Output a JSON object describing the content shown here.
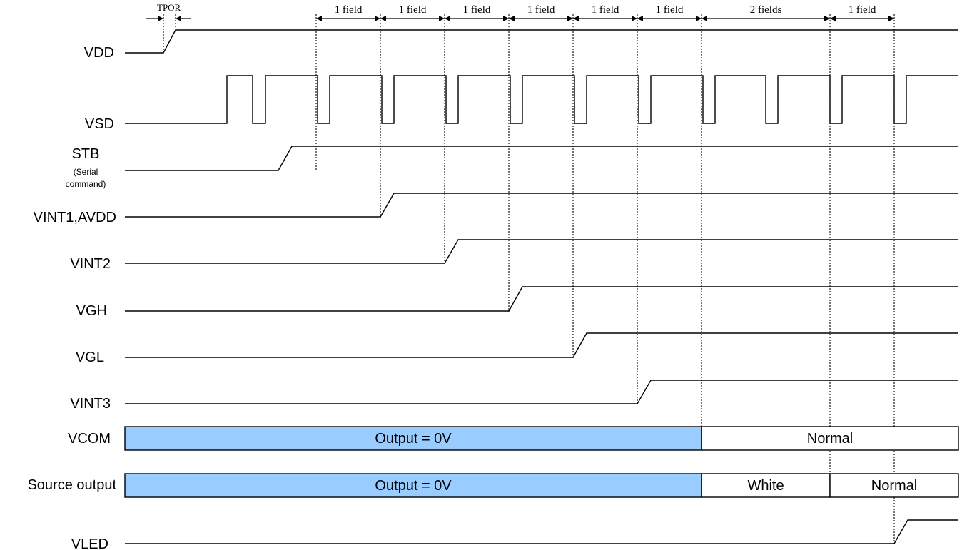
{
  "signals": [
    {
      "id": "vdd",
      "label": "VDD"
    },
    {
      "id": "vsd",
      "label": "VSD"
    },
    {
      "id": "stb",
      "label": "STB",
      "sublabel1": "(Serial",
      "sublabel2": "command)"
    },
    {
      "id": "vint1",
      "label": "VINT1,AVDD"
    },
    {
      "id": "vint2",
      "label": "VINT2"
    },
    {
      "id": "vgh",
      "label": "VGH"
    },
    {
      "id": "vgl",
      "label": "VGL"
    },
    {
      "id": "vint3",
      "label": "VINT3"
    },
    {
      "id": "vcom",
      "label": "VCOM"
    },
    {
      "id": "source",
      "label": "Source output"
    },
    {
      "id": "vled",
      "label": "VLED"
    }
  ],
  "tpor_label": "TPOR",
  "field_labels": [
    "1 field",
    "1 field",
    "1 field",
    "1 field",
    "1 field",
    "1 field",
    "2 fields",
    "1 field"
  ],
  "vcom_segments": [
    "Output = 0V",
    "Normal"
  ],
  "source_segments": [
    "Output = 0V",
    "White",
    "Normal"
  ],
  "colors": {
    "zero_fill": "#99ccff",
    "normal_fill": "#ffffff",
    "line": "#000000"
  }
}
